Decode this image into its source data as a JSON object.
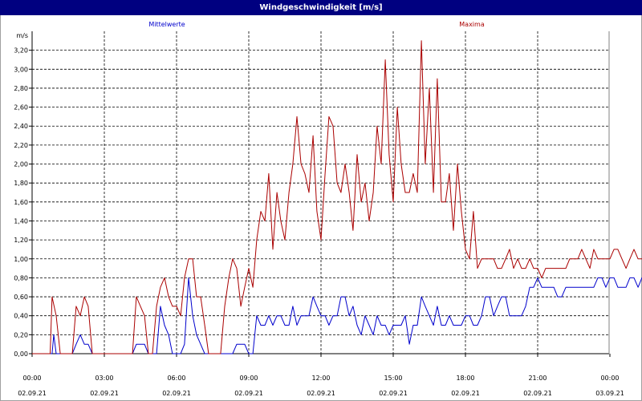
{
  "window": {
    "title": "Windgeschwindigkeit [m/s]"
  },
  "chart_data": {
    "type": "line",
    "title": "Windgeschwindigkeit [m/s]",
    "ylabel": "m/s",
    "xlabel": "",
    "ylim": [
      0,
      3.4
    ],
    "yticks": [
      "0,00",
      "0,20",
      "0,40",
      "0,60",
      "0,80",
      "1,00",
      "1,20",
      "1,40",
      "1,60",
      "1,80",
      "2,00",
      "2,20",
      "2,40",
      "2,60",
      "2,80",
      "3,00",
      "3,20"
    ],
    "xticks": [
      {
        "time": "00:00",
        "date": "02.09.21"
      },
      {
        "time": "03:00",
        "date": "02.09.21"
      },
      {
        "time": "06:00",
        "date": "02.09.21"
      },
      {
        "time": "09:00",
        "date": "02.09.21"
      },
      {
        "time": "12:00",
        "date": "02.09.21"
      },
      {
        "time": "15:00",
        "date": "02.09.21"
      },
      {
        "time": "18:00",
        "date": "02.09.21"
      },
      {
        "time": "21:00",
        "date": "02.09.21"
      },
      {
        "time": "00:00",
        "date": "03.09.21"
      }
    ],
    "grid": true,
    "x_unit": "hours since 02.09.21 00:00",
    "series": [
      {
        "name": "Mittelwerte",
        "color": "#0000cc",
        "points": [
          [
            0,
            0
          ],
          [
            0.83,
            0
          ],
          [
            0.9,
            0.2
          ],
          [
            1.0,
            0
          ],
          [
            1.67,
            0
          ],
          [
            1.83,
            0.1
          ],
          [
            2.0,
            0.2
          ],
          [
            2.17,
            0.1
          ],
          [
            2.33,
            0.1
          ],
          [
            2.5,
            0
          ],
          [
            4.17,
            0
          ],
          [
            4.33,
            0.1
          ],
          [
            4.67,
            0.1
          ],
          [
            4.83,
            0
          ],
          [
            5.17,
            0
          ],
          [
            5.33,
            0.5
          ],
          [
            5.5,
            0.3
          ],
          [
            5.67,
            0.2
          ],
          [
            5.83,
            0
          ],
          [
            6.17,
            0
          ],
          [
            6.33,
            0.1
          ],
          [
            6.5,
            0.8
          ],
          [
            6.67,
            0.4
          ],
          [
            6.83,
            0.2
          ],
          [
            7.0,
            0.1
          ],
          [
            7.17,
            0
          ],
          [
            8.33,
            0
          ],
          [
            8.5,
            0.1
          ],
          [
            8.83,
            0.1
          ],
          [
            9.0,
            0
          ],
          [
            9.17,
            0
          ],
          [
            9.33,
            0.4
          ],
          [
            9.5,
            0.3
          ],
          [
            9.67,
            0.3
          ],
          [
            9.83,
            0.4
          ],
          [
            10.0,
            0.3
          ],
          [
            10.17,
            0.4
          ],
          [
            10.33,
            0.4
          ],
          [
            10.5,
            0.3
          ],
          [
            10.67,
            0.3
          ],
          [
            10.83,
            0.5
          ],
          [
            11.0,
            0.3
          ],
          [
            11.17,
            0.4
          ],
          [
            11.33,
            0.4
          ],
          [
            11.5,
            0.4
          ],
          [
            11.67,
            0.6
          ],
          [
            11.83,
            0.5
          ],
          [
            12.0,
            0.4
          ],
          [
            12.17,
            0.4
          ],
          [
            12.33,
            0.3
          ],
          [
            12.5,
            0.4
          ],
          [
            12.67,
            0.4
          ],
          [
            12.83,
            0.6
          ],
          [
            13.0,
            0.6
          ],
          [
            13.17,
            0.4
          ],
          [
            13.33,
            0.5
          ],
          [
            13.5,
            0.3
          ],
          [
            13.67,
            0.2
          ],
          [
            13.83,
            0.4
          ],
          [
            14.0,
            0.3
          ],
          [
            14.17,
            0.2
          ],
          [
            14.33,
            0.4
          ],
          [
            14.5,
            0.3
          ],
          [
            14.67,
            0.3
          ],
          [
            14.83,
            0.2
          ],
          [
            15.0,
            0.3
          ],
          [
            15.17,
            0.3
          ],
          [
            15.33,
            0.3
          ],
          [
            15.5,
            0.4
          ],
          [
            15.67,
            0.1
          ],
          [
            15.83,
            0.3
          ],
          [
            16.0,
            0.3
          ],
          [
            16.17,
            0.6
          ],
          [
            16.33,
            0.5
          ],
          [
            16.5,
            0.4
          ],
          [
            16.67,
            0.3
          ],
          [
            16.83,
            0.5
          ],
          [
            17.0,
            0.3
          ],
          [
            17.17,
            0.3
          ],
          [
            17.33,
            0.4
          ],
          [
            17.5,
            0.3
          ],
          [
            17.67,
            0.3
          ],
          [
            17.83,
            0.3
          ],
          [
            18.0,
            0.4
          ],
          [
            18.17,
            0.4
          ],
          [
            18.33,
            0.3
          ],
          [
            18.5,
            0.3
          ],
          [
            18.67,
            0.4
          ],
          [
            18.83,
            0.6
          ],
          [
            19.0,
            0.6
          ],
          [
            19.17,
            0.4
          ],
          [
            19.33,
            0.5
          ],
          [
            19.5,
            0.6
          ],
          [
            19.67,
            0.6
          ],
          [
            19.83,
            0.4
          ],
          [
            20.0,
            0.4
          ],
          [
            20.17,
            0.4
          ],
          [
            20.33,
            0.4
          ],
          [
            20.5,
            0.5
          ],
          [
            20.67,
            0.7
          ],
          [
            20.83,
            0.7
          ],
          [
            21.0,
            0.8
          ],
          [
            21.17,
            0.7
          ],
          [
            21.33,
            0.7
          ],
          [
            21.5,
            0.7
          ],
          [
            21.67,
            0.7
          ],
          [
            21.83,
            0.6
          ],
          [
            22.0,
            0.6
          ],
          [
            22.17,
            0.7
          ],
          [
            22.33,
            0.7
          ],
          [
            22.5,
            0.7
          ],
          [
            22.67,
            0.7
          ],
          [
            22.83,
            0.7
          ],
          [
            23.0,
            0.7
          ],
          [
            23.17,
            0.7
          ],
          [
            23.33,
            0.7
          ],
          [
            23.5,
            0.8
          ],
          [
            23.67,
            0.8
          ],
          [
            23.83,
            0.7
          ],
          [
            24.0,
            0.8
          ],
          [
            24.17,
            0.8
          ],
          [
            24.33,
            0.7
          ],
          [
            24.5,
            0.7
          ],
          [
            24.67,
            0.7
          ],
          [
            24.83,
            0.8
          ],
          [
            25.0,
            0.8
          ],
          [
            25.17,
            0.7
          ],
          [
            25.33,
            0.8
          ],
          [
            25.5,
            0.8
          ],
          [
            25.67,
            0.7
          ],
          [
            25.83,
            0.7
          ],
          [
            26.0,
            0.7
          ],
          [
            26.17,
            0.7
          ],
          [
            26.33,
            0.7
          ],
          [
            26.5,
            0.7
          ]
        ]
      },
      {
        "name": "Maxima",
        "color": "#aa0000",
        "points": [
          [
            0,
            0
          ],
          [
            0.75,
            0
          ],
          [
            0.83,
            0.6
          ],
          [
            1.0,
            0.4
          ],
          [
            1.17,
            0
          ],
          [
            1.67,
            0
          ],
          [
            1.83,
            0.5
          ],
          [
            2.0,
            0.4
          ],
          [
            2.17,
            0.6
          ],
          [
            2.33,
            0.5
          ],
          [
            2.5,
            0
          ],
          [
            4.17,
            0
          ],
          [
            4.33,
            0.6
          ],
          [
            4.5,
            0.5
          ],
          [
            4.67,
            0.4
          ],
          [
            4.83,
            0
          ],
          [
            5.0,
            0
          ],
          [
            5.17,
            0.5
          ],
          [
            5.33,
            0.7
          ],
          [
            5.5,
            0.8
          ],
          [
            5.67,
            0.6
          ],
          [
            5.83,
            0.5
          ],
          [
            6.0,
            0.5
          ],
          [
            6.17,
            0.4
          ],
          [
            6.33,
            0.8
          ],
          [
            6.5,
            1.0
          ],
          [
            6.67,
            1.0
          ],
          [
            6.83,
            0.6
          ],
          [
            7.0,
            0.6
          ],
          [
            7.17,
            0.3
          ],
          [
            7.33,
            0
          ],
          [
            7.83,
            0
          ],
          [
            8.0,
            0.5
          ],
          [
            8.17,
            0.8
          ],
          [
            8.33,
            1.0
          ],
          [
            8.5,
            0.9
          ],
          [
            8.67,
            0.5
          ],
          [
            8.83,
            0.7
          ],
          [
            9.0,
            0.9
          ],
          [
            9.17,
            0.7
          ],
          [
            9.33,
            1.2
          ],
          [
            9.5,
            1.5
          ],
          [
            9.67,
            1.4
          ],
          [
            9.83,
            1.9
          ],
          [
            10.0,
            1.1
          ],
          [
            10.17,
            1.7
          ],
          [
            10.33,
            1.4
          ],
          [
            10.5,
            1.2
          ],
          [
            10.67,
            1.7
          ],
          [
            10.83,
            2.0
          ],
          [
            11.0,
            2.5
          ],
          [
            11.17,
            2.0
          ],
          [
            11.33,
            1.9
          ],
          [
            11.5,
            1.7
          ],
          [
            11.67,
            2.3
          ],
          [
            11.83,
            1.5
          ],
          [
            12.0,
            1.2
          ],
          [
            12.17,
            1.9
          ],
          [
            12.33,
            2.5
          ],
          [
            12.5,
            2.4
          ],
          [
            12.67,
            1.8
          ],
          [
            12.83,
            1.7
          ],
          [
            13.0,
            2.0
          ],
          [
            13.17,
            1.7
          ],
          [
            13.33,
            1.3
          ],
          [
            13.5,
            2.1
          ],
          [
            13.67,
            1.6
          ],
          [
            13.83,
            1.8
          ],
          [
            14.0,
            1.4
          ],
          [
            14.17,
            1.7
          ],
          [
            14.33,
            2.4
          ],
          [
            14.5,
            2.0
          ],
          [
            14.67,
            3.1
          ],
          [
            14.83,
            2.1
          ],
          [
            15.0,
            1.6
          ],
          [
            15.17,
            2.6
          ],
          [
            15.33,
            2.0
          ],
          [
            15.5,
            1.7
          ],
          [
            15.67,
            1.7
          ],
          [
            15.83,
            1.9
          ],
          [
            16.0,
            1.7
          ],
          [
            16.17,
            3.3
          ],
          [
            16.33,
            2.0
          ],
          [
            16.5,
            2.8
          ],
          [
            16.67,
            1.7
          ],
          [
            16.83,
            2.9
          ],
          [
            17.0,
            1.6
          ],
          [
            17.17,
            1.6
          ],
          [
            17.33,
            1.9
          ],
          [
            17.5,
            1.3
          ],
          [
            17.67,
            2.0
          ],
          [
            17.83,
            1.5
          ],
          [
            18.0,
            1.1
          ],
          [
            18.17,
            1.0
          ],
          [
            18.33,
            1.5
          ],
          [
            18.5,
            0.9
          ],
          [
            18.67,
            1.0
          ],
          [
            18.83,
            1.0
          ],
          [
            19.0,
            1.0
          ],
          [
            19.17,
            1.0
          ],
          [
            19.33,
            0.9
          ],
          [
            19.5,
            0.9
          ],
          [
            19.67,
            1.0
          ],
          [
            19.83,
            1.1
          ],
          [
            20.0,
            0.9
          ],
          [
            20.17,
            1.0
          ],
          [
            20.33,
            0.9
          ],
          [
            20.5,
            0.9
          ],
          [
            20.67,
            1.0
          ],
          [
            20.83,
            0.9
          ],
          [
            21.0,
            0.9
          ],
          [
            21.17,
            0.8
          ],
          [
            21.33,
            0.9
          ],
          [
            21.5,
            0.9
          ],
          [
            21.67,
            0.9
          ],
          [
            21.83,
            0.9
          ],
          [
            22.0,
            0.9
          ],
          [
            22.17,
            0.9
          ],
          [
            22.33,
            1.0
          ],
          [
            22.5,
            1.0
          ],
          [
            22.67,
            1.0
          ],
          [
            22.83,
            1.1
          ],
          [
            23.0,
            1.0
          ],
          [
            23.17,
            0.9
          ],
          [
            23.33,
            1.1
          ],
          [
            23.5,
            1.0
          ],
          [
            23.67,
            1.0
          ],
          [
            23.83,
            1.0
          ],
          [
            24.0,
            1.0
          ],
          [
            24.17,
            1.1
          ],
          [
            24.33,
            1.1
          ],
          [
            24.5,
            1.0
          ],
          [
            24.67,
            0.9
          ],
          [
            24.83,
            1.0
          ],
          [
            25.0,
            1.1
          ],
          [
            25.17,
            1.0
          ],
          [
            25.33,
            1.0
          ],
          [
            25.5,
            1.0
          ],
          [
            25.67,
            1.0
          ],
          [
            25.83,
            0.9
          ],
          [
            26.0,
            1.1
          ],
          [
            26.17,
            0.9
          ],
          [
            26.33,
            1.0
          ],
          [
            26.5,
            0.9
          ]
        ]
      }
    ]
  }
}
